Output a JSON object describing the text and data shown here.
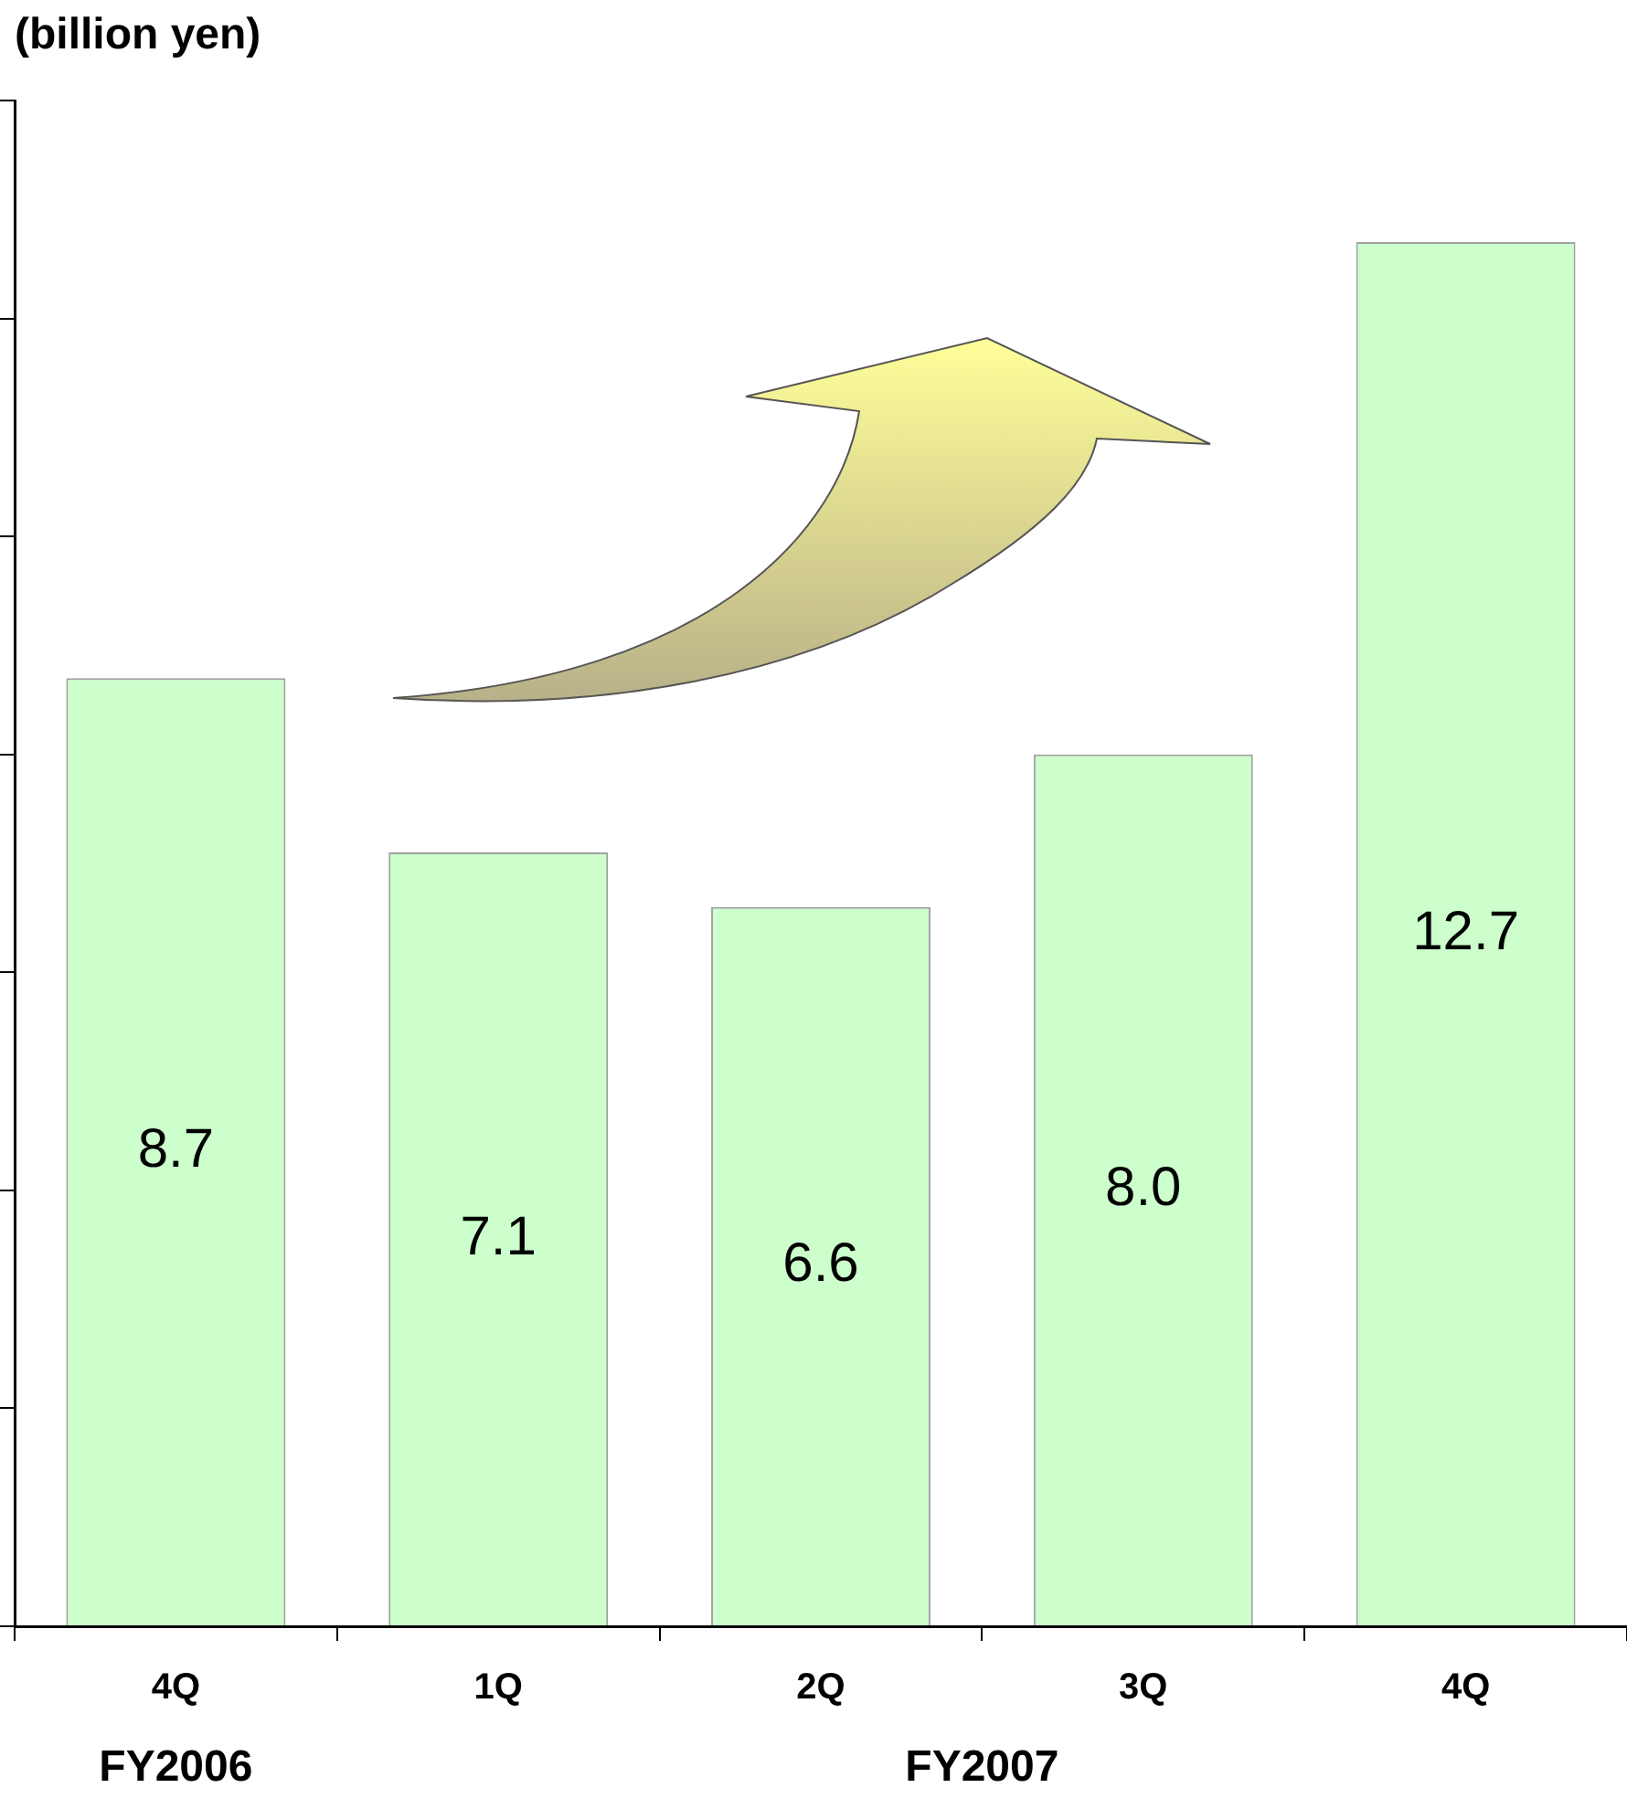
{
  "chart_data": {
    "type": "bar",
    "ylabel": "(billion yen)",
    "categories": [
      "4Q",
      "1Q",
      "2Q",
      "3Q",
      "4Q"
    ],
    "values": [
      8.7,
      7.1,
      6.6,
      8.0,
      12.7
    ],
    "color": "#ccffcc",
    "ylim": [
      0,
      14
    ],
    "yticks": [
      {
        "value": 0,
        "label": null
      },
      {
        "value": 2,
        "label": null
      },
      {
        "value": 4,
        "label": null
      },
      {
        "value": 6,
        "label": null
      },
      {
        "value": 8,
        "label": null
      },
      {
        "value": 10,
        "label": null
      },
      {
        "value": 12,
        "label": null
      },
      {
        "value": 14,
        "label": null
      }
    ],
    "value_labels": [
      "8.7",
      "7.1",
      "6.6",
      "8.0",
      "12.7"
    ],
    "grid": false,
    "legend": false,
    "annotations": [
      "FY2006",
      "FY2007"
    ]
  }
}
